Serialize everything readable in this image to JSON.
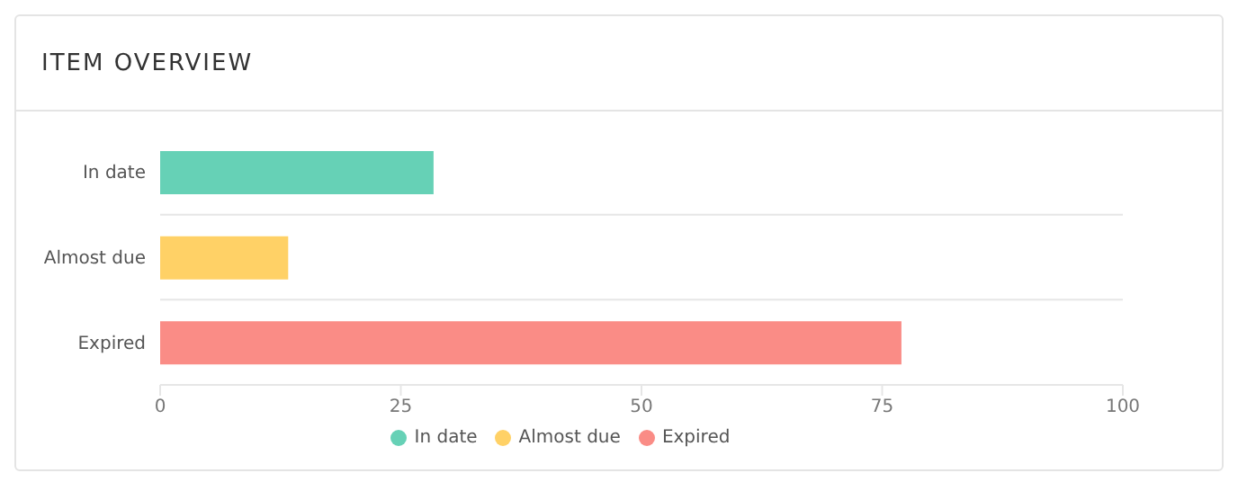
{
  "chart_data": {
    "type": "bar",
    "title": "ITEM OVERVIEW",
    "orientation": "horizontal",
    "stacked": true,
    "categories": [
      "In date",
      "Almost due",
      "Expired"
    ],
    "series": [
      {
        "name": "In date",
        "color": "#66d1b6",
        "values": [
          28.4,
          null,
          null
        ]
      },
      {
        "name": "Almost due",
        "color": "#ffd166",
        "values": [
          null,
          13.3,
          null
        ]
      },
      {
        "name": "Expired",
        "color": "#fa8c86",
        "values": [
          null,
          null,
          77
        ]
      }
    ],
    "xlim": [
      0,
      100
    ],
    "xticks": [
      0,
      25,
      50,
      75,
      100
    ],
    "grid": "y",
    "legend": "bottom"
  }
}
